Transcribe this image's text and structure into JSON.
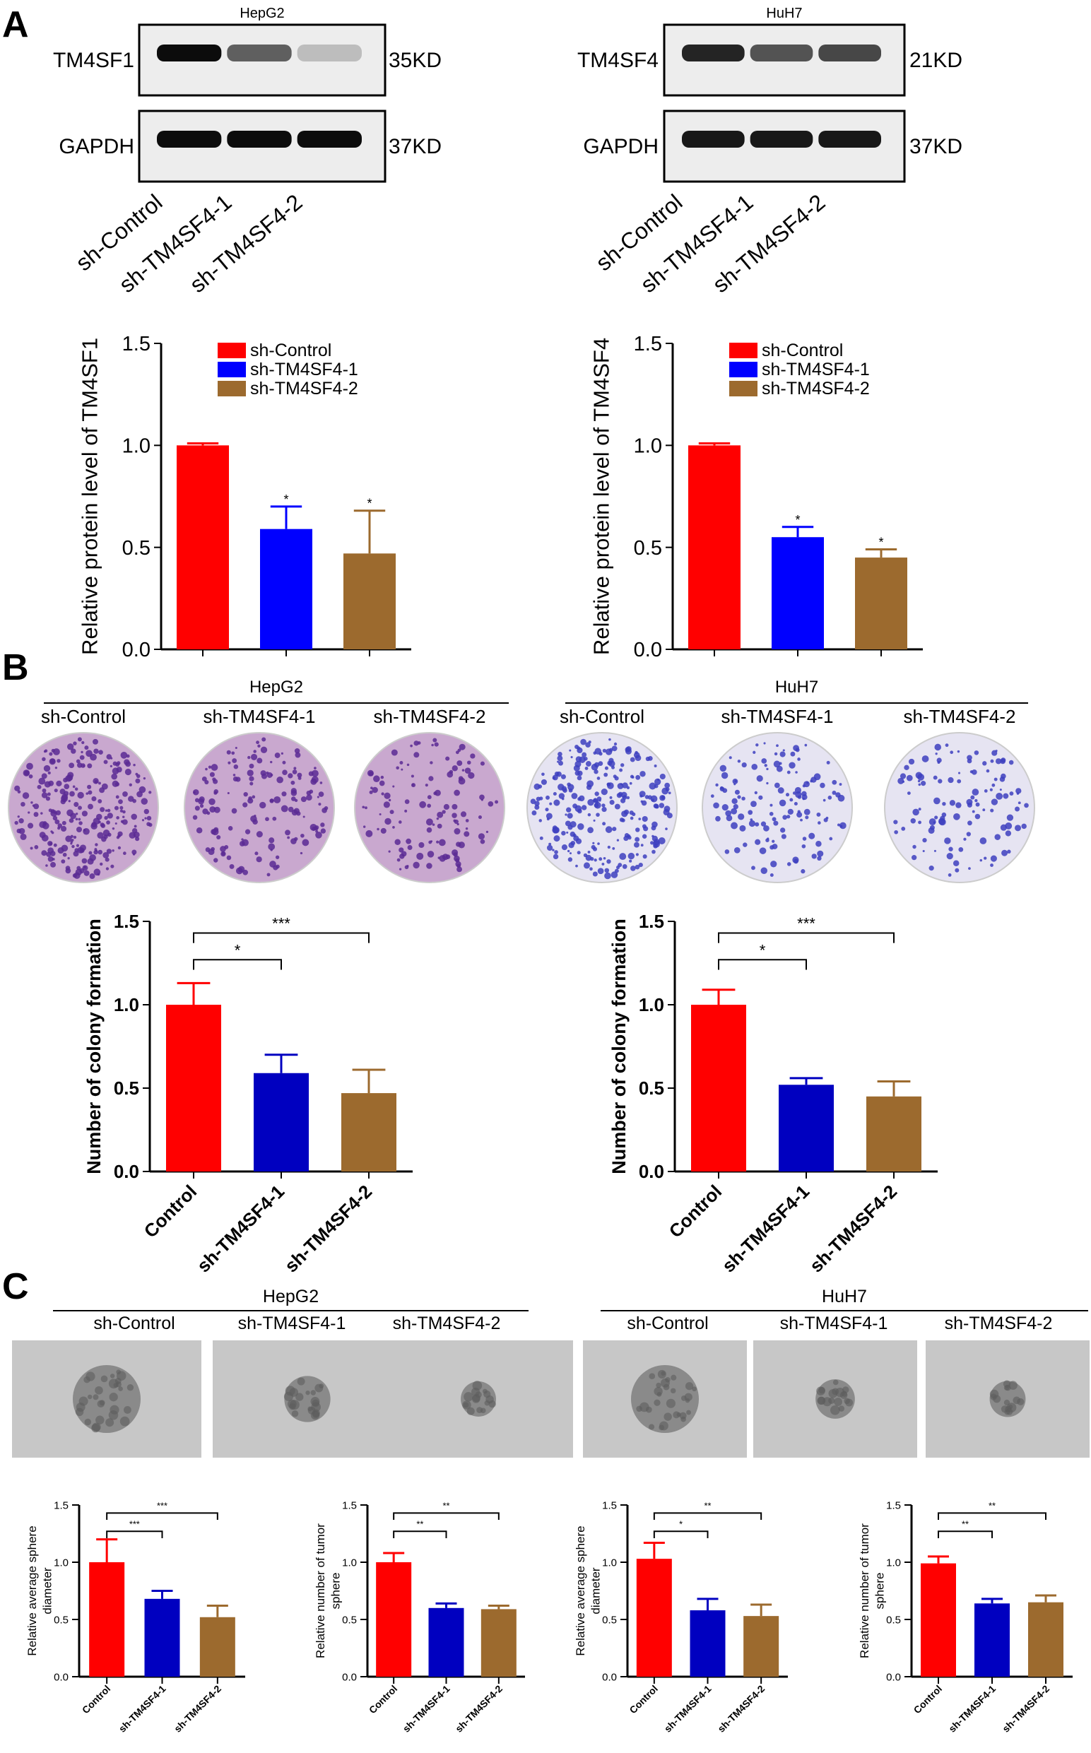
{
  "panel_letters": [
    "A",
    "B",
    "C"
  ],
  "blots": [
    {
      "cell": "HepG2",
      "bands": [
        {
          "label": "TM4SF1",
          "size": "35KD",
          "intensities": [
            0.95,
            0.6,
            0.2
          ]
        },
        {
          "label": "GAPDH",
          "size": "37KD",
          "intensities": [
            0.95,
            0.95,
            0.95
          ]
        }
      ],
      "lanes": [
        "sh-Control",
        "sh-TM4SF4-1",
        "sh-TM4SF4-2"
      ]
    },
    {
      "cell": "HuH7",
      "bands": [
        {
          "label": "TM4SF4",
          "size": "21KD",
          "intensities": [
            0.85,
            0.65,
            0.7
          ]
        },
        {
          "label": "GAPDH",
          "size": "37KD",
          "intensities": [
            0.9,
            0.9,
            0.9
          ]
        }
      ],
      "lanes": [
        "sh-Control",
        "sh-TM4SF4-1",
        "sh-TM4SF4-2"
      ]
    }
  ],
  "colony_images": [
    {
      "cell": "HepG2",
      "labels": [
        "sh-Control",
        "sh-TM4SF4-1",
        "sh-TM4SF4-2"
      ],
      "colony_density": [
        1.0,
        0.6,
        0.48
      ],
      "dish_color": "#c9a8cf",
      "dot_color": "#5b2a94"
    },
    {
      "cell": "HuH7",
      "labels": [
        "sh-Control",
        "sh-TM4SF4-1",
        "sh-TM4SF4-2"
      ],
      "colony_density": [
        1.0,
        0.52,
        0.45
      ],
      "dish_color": "#e6e4f2",
      "dot_color": "#3d3fbf"
    }
  ],
  "sphere_images": [
    {
      "cell": "HepG2",
      "labels": [
        "sh-Control",
        "sh-TM4SF4-1",
        "sh-TM4SF4-2"
      ],
      "sphere_size": [
        1.0,
        0.68,
        0.52
      ]
    },
    {
      "cell": "HuH7",
      "labels": [
        "sh-Control",
        "sh-TM4SF4-1",
        "sh-TM4SF4-2"
      ],
      "sphere_size": [
        1.0,
        0.58,
        0.53
      ]
    }
  ],
  "colors": {
    "red": "#ff0000",
    "blue": "#0000ff",
    "dark_blue": "#0000c0",
    "brown": "#9c6a2e"
  },
  "chart_data": [
    {
      "type": "bar",
      "id": "A-left",
      "categories": [
        "sh-Control",
        "sh-TM4SF4-1",
        "sh-TM4SF4-2"
      ],
      "values": [
        1.0,
        0.59,
        0.47
      ],
      "errors": [
        0.01,
        0.11,
        0.21
      ],
      "ylabel": "Relative protein level of TM4SF1",
      "ylim": [
        0,
        1.5
      ],
      "yticks": [
        "0.0",
        "0.5",
        "1.0",
        "1.5"
      ],
      "legend": [
        "sh-Control",
        "sh-TM4SF4-1",
        "sh-TM4SF4-2"
      ],
      "legend_position": "top-left",
      "stars": [
        "",
        "*",
        "*"
      ],
      "colors": [
        "#ff0000",
        "#0000ff",
        "#9c6a2e"
      ]
    },
    {
      "type": "bar",
      "id": "A-right",
      "categories": [
        "sh-Control",
        "sh-TM4SF4-1",
        "sh-TM4SF4-2"
      ],
      "values": [
        1.0,
        0.55,
        0.45
      ],
      "errors": [
        0.01,
        0.05,
        0.04
      ],
      "ylabel": "Relative protein level of TM4SF4",
      "ylim": [
        0,
        1.5
      ],
      "yticks": [
        "0.0",
        "0.5",
        "1.0",
        "1.5"
      ],
      "legend": [
        "sh-Control",
        "sh-TM4SF4-1",
        "sh-TM4SF4-2"
      ],
      "legend_position": "top-left",
      "stars": [
        "",
        "*",
        "*"
      ],
      "colors": [
        "#ff0000",
        "#0000ff",
        "#9c6a2e"
      ]
    },
    {
      "type": "bar",
      "id": "B-left",
      "categories": [
        "Control",
        "sh-TM4SF4-1",
        "sh-TM4SF4-2"
      ],
      "values": [
        1.0,
        0.59,
        0.47
      ],
      "errors": [
        0.13,
        0.11,
        0.14
      ],
      "ylabel": "Number of colony formation",
      "ylim": [
        0,
        1.5
      ],
      "yticks": [
        "0.0",
        "0.5",
        "1.0",
        "1.5"
      ],
      "comparisons": [
        {
          "from": 0,
          "to": 1,
          "label": "*",
          "y": 1.27
        },
        {
          "from": 0,
          "to": 2,
          "label": "***",
          "y": 1.43
        }
      ],
      "colors": [
        "#ff0000",
        "#0000c0",
        "#9c6a2e"
      ]
    },
    {
      "type": "bar",
      "id": "B-right",
      "categories": [
        "Control",
        "sh-TM4SF4-1",
        "sh-TM4SF4-2"
      ],
      "values": [
        1.0,
        0.52,
        0.45
      ],
      "errors": [
        0.09,
        0.04,
        0.09
      ],
      "ylabel": "Number of colony formation",
      "ylim": [
        0,
        1.5
      ],
      "yticks": [
        "0.0",
        "0.5",
        "1.0",
        "1.5"
      ],
      "comparisons": [
        {
          "from": 0,
          "to": 1,
          "label": "*",
          "y": 1.27
        },
        {
          "from": 0,
          "to": 2,
          "label": "***",
          "y": 1.43
        }
      ],
      "colors": [
        "#ff0000",
        "#0000c0",
        "#9c6a2e"
      ]
    },
    {
      "type": "bar",
      "id": "C-1",
      "categories": [
        "Control",
        "sh-TM4SF4-1",
        "sh-TM4SF4-2"
      ],
      "values": [
        1.0,
        0.68,
        0.52
      ],
      "errors": [
        0.2,
        0.07,
        0.1
      ],
      "ylabel_lines": [
        "Relative average sphere",
        "diameter"
      ],
      "ylim": [
        0,
        1.5
      ],
      "yticks": [
        "0.0",
        "0.5",
        "1.0",
        "1.5"
      ],
      "comparisons": [
        {
          "from": 0,
          "to": 1,
          "label": "***",
          "y": 1.27
        },
        {
          "from": 0,
          "to": 2,
          "label": "***",
          "y": 1.43
        }
      ],
      "colors": [
        "#ff0000",
        "#0000c0",
        "#9c6a2e"
      ]
    },
    {
      "type": "bar",
      "id": "C-2",
      "categories": [
        "Control",
        "sh-TM4SF4-1",
        "sh-TM4SF4-2"
      ],
      "values": [
        1.0,
        0.6,
        0.59
      ],
      "errors": [
        0.08,
        0.04,
        0.03
      ],
      "ylabel_lines": [
        "Relative number of tumor",
        "sphere"
      ],
      "ylim": [
        0,
        1.5
      ],
      "yticks": [
        "0.0",
        "0.5",
        "1.0",
        "1.5"
      ],
      "comparisons": [
        {
          "from": 0,
          "to": 1,
          "label": "**",
          "y": 1.27
        },
        {
          "from": 0,
          "to": 2,
          "label": "**",
          "y": 1.43
        }
      ],
      "colors": [
        "#ff0000",
        "#0000c0",
        "#9c6a2e"
      ]
    },
    {
      "type": "bar",
      "id": "C-3",
      "categories": [
        "Control",
        "sh-TM4SF4-1",
        "sh-TM4SF4-2"
      ],
      "values": [
        1.03,
        0.58,
        0.53
      ],
      "errors": [
        0.14,
        0.1,
        0.1
      ],
      "ylabel_lines": [
        "Relative average sphere",
        "diameter"
      ],
      "ylim": [
        0,
        1.5
      ],
      "yticks": [
        "0.0",
        "0.5",
        "1.0",
        "1.5"
      ],
      "comparisons": [
        {
          "from": 0,
          "to": 1,
          "label": "*",
          "y": 1.27
        },
        {
          "from": 0,
          "to": 2,
          "label": "**",
          "y": 1.43
        }
      ],
      "colors": [
        "#ff0000",
        "#0000c0",
        "#9c6a2e"
      ]
    },
    {
      "type": "bar",
      "id": "C-4",
      "categories": [
        "Control",
        "sh-TM4SF4-1",
        "sh-TM4SF4-2"
      ],
      "values": [
        0.99,
        0.64,
        0.65
      ],
      "errors": [
        0.06,
        0.04,
        0.06
      ],
      "ylabel_lines": [
        "Relative number of tumor",
        "sphere"
      ],
      "ylim": [
        0,
        1.5
      ],
      "yticks": [
        "0.0",
        "0.5",
        "1.0",
        "1.5"
      ],
      "comparisons": [
        {
          "from": 0,
          "to": 1,
          "label": "**",
          "y": 1.27
        },
        {
          "from": 0,
          "to": 2,
          "label": "**",
          "y": 1.43
        }
      ],
      "colors": [
        "#ff0000",
        "#0000c0",
        "#9c6a2e"
      ]
    }
  ]
}
